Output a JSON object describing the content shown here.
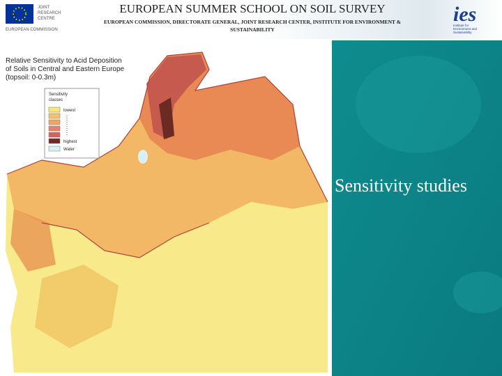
{
  "header": {
    "title": "EUROPEAN SUMMER SCHOOL ON SOIL SURVEY",
    "subtitle_lines": [
      "EUROPEAN COMMISSION, DIRECTORATE GENERAL, JOINT RESEARCH CENTER, INSTITUTE FOR ENVIRONMENT &",
      "SUSTAINABILITY"
    ]
  },
  "logos": {
    "jrc": [
      "JOINT",
      "RESEARCH",
      "CENTRE"
    ],
    "ec": "EUROPEAN COMMISSION",
    "ies": {
      "mark": "ies",
      "caption": [
        "Institute for",
        "Environment and",
        "Sustainability"
      ]
    }
  },
  "map": {
    "title_lines": [
      "Relative Sensitivity to Acid Deposition",
      "of Soils in Central and Eastern Europe",
      "(topsoil: 0-0.3m)"
    ],
    "legend": {
      "title_lines": [
        "Sensitivity",
        "classes"
      ],
      "lowest": "lowest",
      "highest": "highest",
      "water": "Water"
    }
  },
  "slide_title": "Sensitivity studies"
}
